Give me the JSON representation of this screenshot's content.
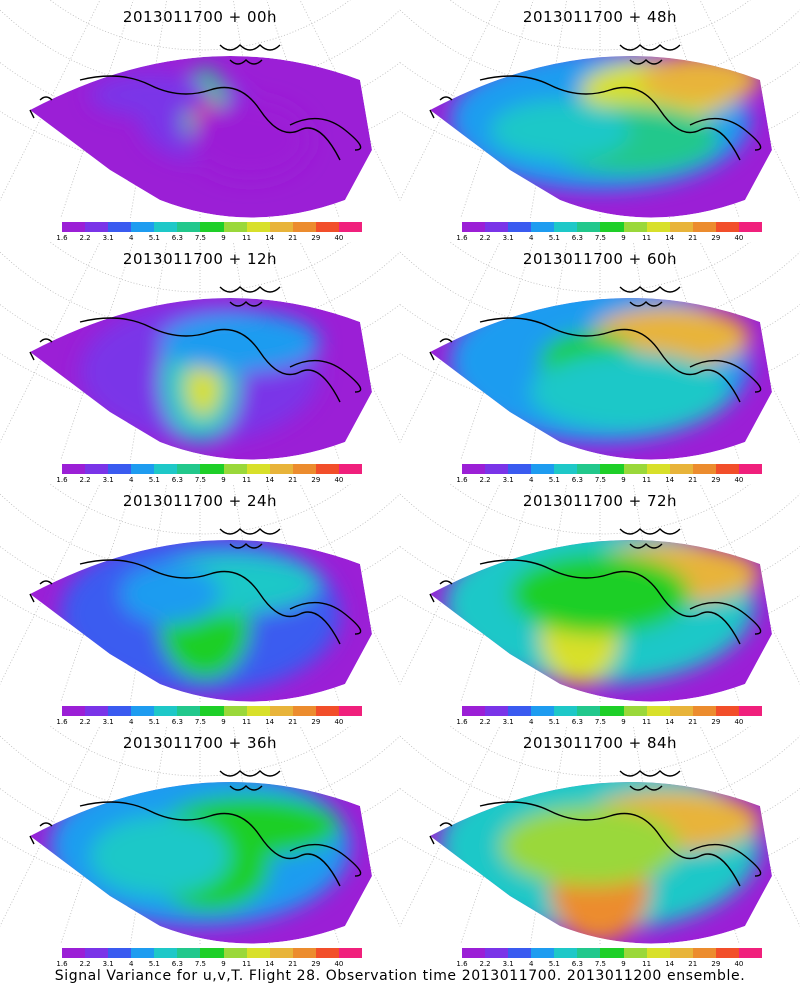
{
  "panels": [
    {
      "title": "2013011700 + 00h"
    },
    {
      "title": "2013011700 + 48h"
    },
    {
      "title": "2013011700 + 12h"
    },
    {
      "title": "2013011700 + 60h"
    },
    {
      "title": "2013011700 + 24h"
    },
    {
      "title": "2013011700 + 72h"
    },
    {
      "title": "2013011700 + 36h"
    },
    {
      "title": "2013011700 + 84h"
    }
  ],
  "colorbar": {
    "colors": [
      "#9b1fd6",
      "#7a34e8",
      "#3a5bf0",
      "#1e9cf0",
      "#1ec8c8",
      "#22c88c",
      "#1ecf28",
      "#9ad83a",
      "#d8e02a",
      "#e8b43a",
      "#ec8c2e",
      "#f24e2a",
      "#f0207c"
    ],
    "labels": [
      "1.6",
      "2.2",
      "3.1",
      "4",
      "5.1",
      "6.3",
      "7.5",
      "9",
      "11",
      "14",
      "21",
      "29",
      "40"
    ]
  },
  "caption": "Signal Variance for u,v,T. Flight 28. Observation time 2013011700. 2013011200 ensemble."
}
